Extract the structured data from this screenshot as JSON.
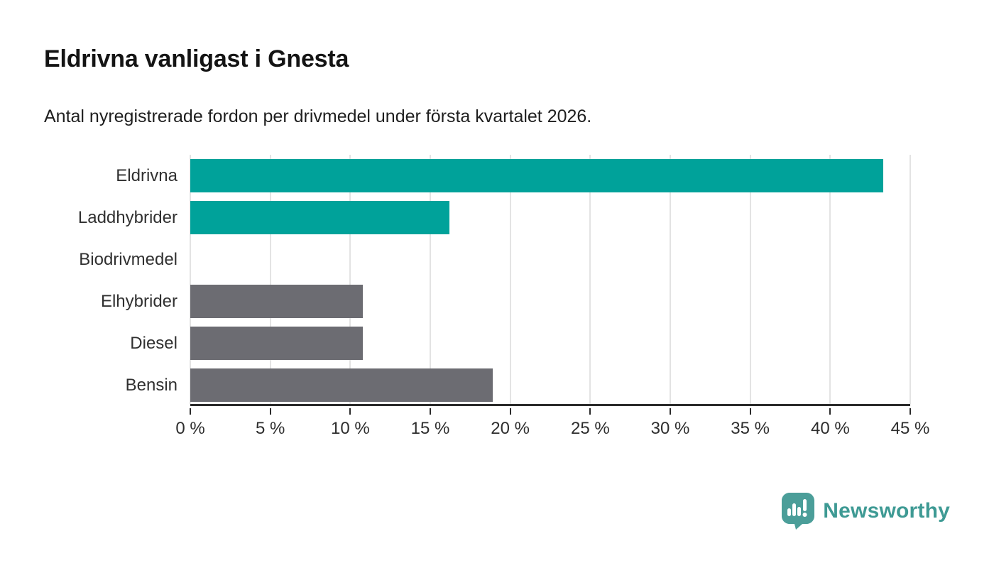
{
  "header": {
    "title": "Eldrivna vanligast i Gnesta",
    "subtitle": "Antal nyregistrerade fordon per drivmedel under första kvartalet 2026."
  },
  "colors": {
    "teal_bar": "#00a29a",
    "gray_bar": "#6c6c72",
    "gridline": "#e3e3e3",
    "axis": "#2b2b2b",
    "text_dark": "#141414",
    "logo_teal": "#3e9a94"
  },
  "chart_data": {
    "type": "bar",
    "orientation": "horizontal",
    "title": "Eldrivna vanligast i Gnesta",
    "subtitle": "Antal nyregistrerade fordon per drivmedel under första kvartalet 2026.",
    "categories": [
      "Eldrivna",
      "Laddhybrider",
      "Biodrivmedel",
      "Elhybrider",
      "Diesel",
      "Bensin"
    ],
    "values": [
      43.3,
      16.2,
      0,
      10.8,
      10.8,
      18.9
    ],
    "bar_colors": [
      "#00a29a",
      "#00a29a",
      "#6c6c72",
      "#6c6c72",
      "#6c6c72",
      "#6c6c72"
    ],
    "xlabel": "",
    "ylabel": "",
    "xlim": [
      0,
      45
    ],
    "tick_values": [
      0,
      5,
      10,
      15,
      20,
      25,
      30,
      35,
      40,
      45
    ],
    "tick_labels": [
      "0 %",
      "5 %",
      "10 %",
      "15 %",
      "20 %",
      "25 %",
      "30 %",
      "35 %",
      "40 %",
      "45 %"
    ],
    "grid": "vertical",
    "legend": "none"
  },
  "footer": {
    "brand": "Newsworthy"
  }
}
